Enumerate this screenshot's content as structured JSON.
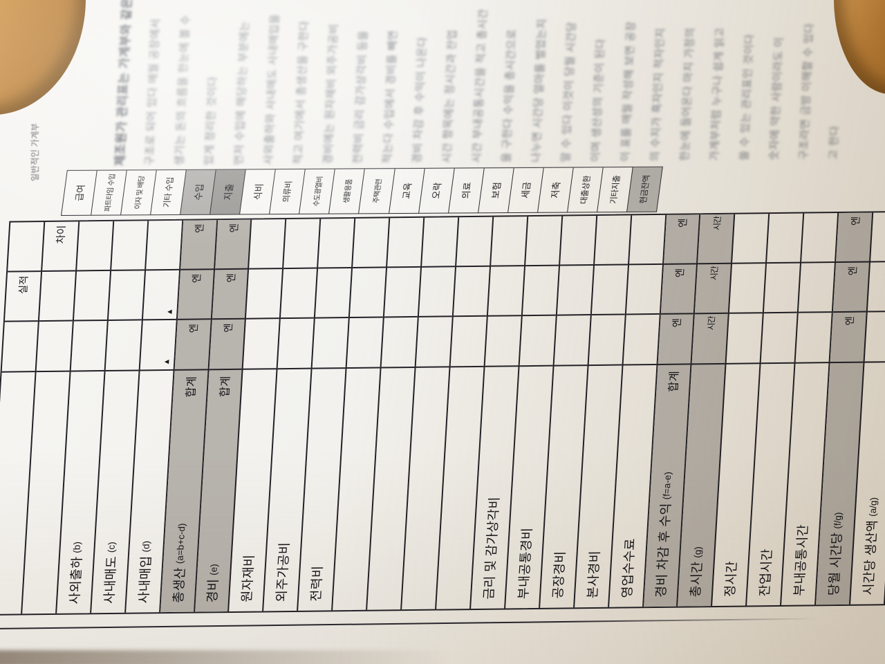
{
  "page": {
    "caption": "일반적인 가계부",
    "body_lines": [
      "제조원가 관리표는 가계부와 같은",
      "구조로 되어 있다 매월 공장에서",
      "생기는 돈의 흐름을 한눈에 볼 수",
      "있게 정리한 것이다",
      "  먼저 수입에 해당하는 부분에는",
      "사외출하와 사내매도 사내매입을",
      "적고 여기에서 총생산을 구한다",
      "경비에는 원자재비 외주가공비",
      "전력비 금리 감가상각비 등을",
      "적는다 수입에서 경비를 빼면",
      "경비 차감 후 수익이 나온다",
      "  시간 항목에는 정시간과 잔업",
      "시간 부내공통시간을 적고 총시간",
      "을 구한다 수익을 총시간으로",
      "나누면 시간당 얼마를 벌었는지",
      "알 수 있다 이것이 당월 시간당",
      "이며 생산성의 기준이 된다",
      "  이 표를 매월 작성해 보면 공장",
      "의 수지가 흑자인지 적자인지",
      "한눈에 들어온다 마치 가정의",
      "가계부처럼 누구나 쉽게 읽고",
      "쓸 수 있는 관리표인 것이다",
      "  숫자에 약한 사람이라도 이",
      "구조라면 금방 이해할 수 있다",
      "고 한다",
      ""
    ]
  },
  "category_strip": {
    "items": [
      {
        "label": "급여",
        "shade": "none",
        "size": "lg"
      },
      {
        "label": "파트타임 수입",
        "shade": "none",
        "size": "sm"
      },
      {
        "label": "이자 및 배당",
        "shade": "none",
        "size": "sm"
      },
      {
        "label": "기타 수입",
        "shade": "none",
        "size": "md"
      },
      {
        "label": "수입",
        "shade": "s1",
        "size": "lg"
      },
      {
        "label": "지출",
        "shade": "s2",
        "size": "lg"
      },
      {
        "label": "식비",
        "shade": "none",
        "size": "lg"
      },
      {
        "label": "의류비",
        "shade": "none",
        "size": "md"
      },
      {
        "label": "수도광열비",
        "shade": "none",
        "size": "sm"
      },
      {
        "label": "생활용품",
        "shade": "none",
        "size": "sm"
      },
      {
        "label": "주택관련",
        "shade": "none",
        "size": "sm"
      },
      {
        "label": "교육",
        "shade": "none",
        "size": "lg"
      },
      {
        "label": "오락",
        "shade": "none",
        "size": "lg"
      },
      {
        "label": "의료",
        "shade": "none",
        "size": "lg"
      },
      {
        "label": "보험",
        "shade": "none",
        "size": "lg"
      },
      {
        "label": "세금",
        "shade": "none",
        "size": "lg"
      },
      {
        "label": "저축",
        "shade": "none",
        "size": "lg"
      },
      {
        "label": "대출상환",
        "shade": "none",
        "size": "md"
      },
      {
        "label": "기타지출",
        "shade": "none",
        "size": "md"
      },
      {
        "label": "현금잔액",
        "shade": "s1",
        "size": "md"
      }
    ]
  },
  "main_table": {
    "edge_headers": {
      "band1": "차이",
      "band2": "실적"
    },
    "unit_money": "엔",
    "unit_time": "시간",
    "total_label": "합계",
    "negative_mark": "▲",
    "rows": [
      {
        "label": "",
        "formula": "",
        "shaded": false,
        "total": "",
        "cells": {
          "b1": "",
          "b2": "실적",
          "b3": ""
        }
      },
      {
        "label": "",
        "formula": "",
        "shaded": false,
        "total": "",
        "cells": {
          "b1": "차이",
          "b2": "",
          "b3": ""
        }
      },
      {
        "label": "사외출하",
        "formula": "(b)",
        "shaded": false,
        "total": "",
        "cells": {
          "b1": "",
          "b2": "",
          "b3": ""
        }
      },
      {
        "label": "사내매도",
        "formula": "(c)",
        "shaded": false,
        "total": "",
        "cells": {
          "b1": "",
          "b2": "",
          "b3": ""
        }
      },
      {
        "label": "사내매입",
        "formula": "(d)",
        "shaded": false,
        "total": "",
        "cells": {
          "b1": "",
          "b2": "▲",
          "b3": "▲"
        }
      },
      {
        "label": "총생산",
        "formula": "(a=b+c-d)",
        "shaded": true,
        "total": "합계",
        "cells": {
          "b1": "엔",
          "b2": "엔",
          "b3": "엔"
        }
      },
      {
        "label": "경비",
        "formula": "(e)",
        "shaded": true,
        "total": "합계",
        "cells": {
          "b1": "엔",
          "b2": "엔",
          "b3": "엔"
        }
      },
      {
        "label": "원자재비",
        "formula": "",
        "shaded": false,
        "total": "",
        "cells": {
          "b1": "",
          "b2": "",
          "b3": ""
        }
      },
      {
        "label": "외주가공비",
        "formula": "",
        "shaded": false,
        "total": "",
        "cells": {
          "b1": "",
          "b2": "",
          "b3": ""
        }
      },
      {
        "label": "전력비",
        "formula": "",
        "shaded": false,
        "total": "",
        "cells": {
          "b1": "",
          "b2": "",
          "b3": ""
        }
      },
      {
        "label": "",
        "formula": "",
        "shaded": false,
        "total": "",
        "cells": {
          "b1": "",
          "b2": "",
          "b3": ""
        }
      },
      {
        "label": "",
        "formula": "",
        "shaded": false,
        "total": "",
        "cells": {
          "b1": "",
          "b2": "",
          "b3": ""
        }
      },
      {
        "label": "",
        "formula": "",
        "shaded": false,
        "total": "",
        "cells": {
          "b1": "",
          "b2": "",
          "b3": ""
        }
      },
      {
        "label": "",
        "formula": "",
        "shaded": false,
        "total": "",
        "cells": {
          "b1": "",
          "b2": "",
          "b3": ""
        }
      },
      {
        "label": "금리 및 감가상각비",
        "formula": "",
        "shaded": false,
        "total": "",
        "cells": {
          "b1": "",
          "b2": "",
          "b3": ""
        }
      },
      {
        "label": "부내공통경비",
        "formula": "",
        "shaded": false,
        "total": "",
        "cells": {
          "b1": "",
          "b2": "",
          "b3": ""
        }
      },
      {
        "label": "공장경비",
        "formula": "",
        "shaded": false,
        "total": "",
        "cells": {
          "b1": "",
          "b2": "",
          "b3": ""
        }
      },
      {
        "label": "본사경비",
        "formula": "",
        "shaded": false,
        "total": "",
        "cells": {
          "b1": "",
          "b2": "",
          "b3": ""
        }
      },
      {
        "label": "영업수수료",
        "formula": "",
        "shaded": false,
        "total": "",
        "cells": {
          "b1": "",
          "b2": "",
          "b3": ""
        }
      },
      {
        "label": "경비 차감 후 수익",
        "formula": "(f=a-e)",
        "shaded": true,
        "total": "합계",
        "cells": {
          "b1": "엔",
          "b2": "엔",
          "b3": "엔"
        }
      },
      {
        "label": "총시간",
        "formula": "(g)",
        "shaded": true,
        "total": "",
        "cells": {
          "b1": "시간",
          "b2": "시간",
          "b3": "시간"
        }
      },
      {
        "label": "정시간",
        "formula": "",
        "shaded": false,
        "total": "",
        "cells": {
          "b1": "",
          "b2": "",
          "b3": ""
        }
      },
      {
        "label": "잔업시간",
        "formula": "",
        "shaded": false,
        "total": "",
        "cells": {
          "b1": "",
          "b2": "",
          "b3": ""
        }
      },
      {
        "label": "부내공통시간",
        "formula": "",
        "shaded": false,
        "total": "",
        "cells": {
          "b1": "",
          "b2": "",
          "b3": ""
        }
      },
      {
        "label": "당월 시간당",
        "formula": "(f/g)",
        "shaded": true,
        "total": "",
        "cells": {
          "b1": "엔",
          "b2": "엔",
          "b3": "엔"
        }
      },
      {
        "label": "시간당 생산액",
        "formula": "(a/g)",
        "shaded": false,
        "total": "",
        "cells": {
          "b1": "",
          "b2": "",
          "b3": ""
        }
      }
    ]
  },
  "colors": {
    "wood": "#bb8038",
    "paper": "#f2f1ed",
    "line": "#232127",
    "shade_mid": "#b8b4ae",
    "shade_strip": "#b4b2ae",
    "shade_dark": "#9e9c98"
  }
}
